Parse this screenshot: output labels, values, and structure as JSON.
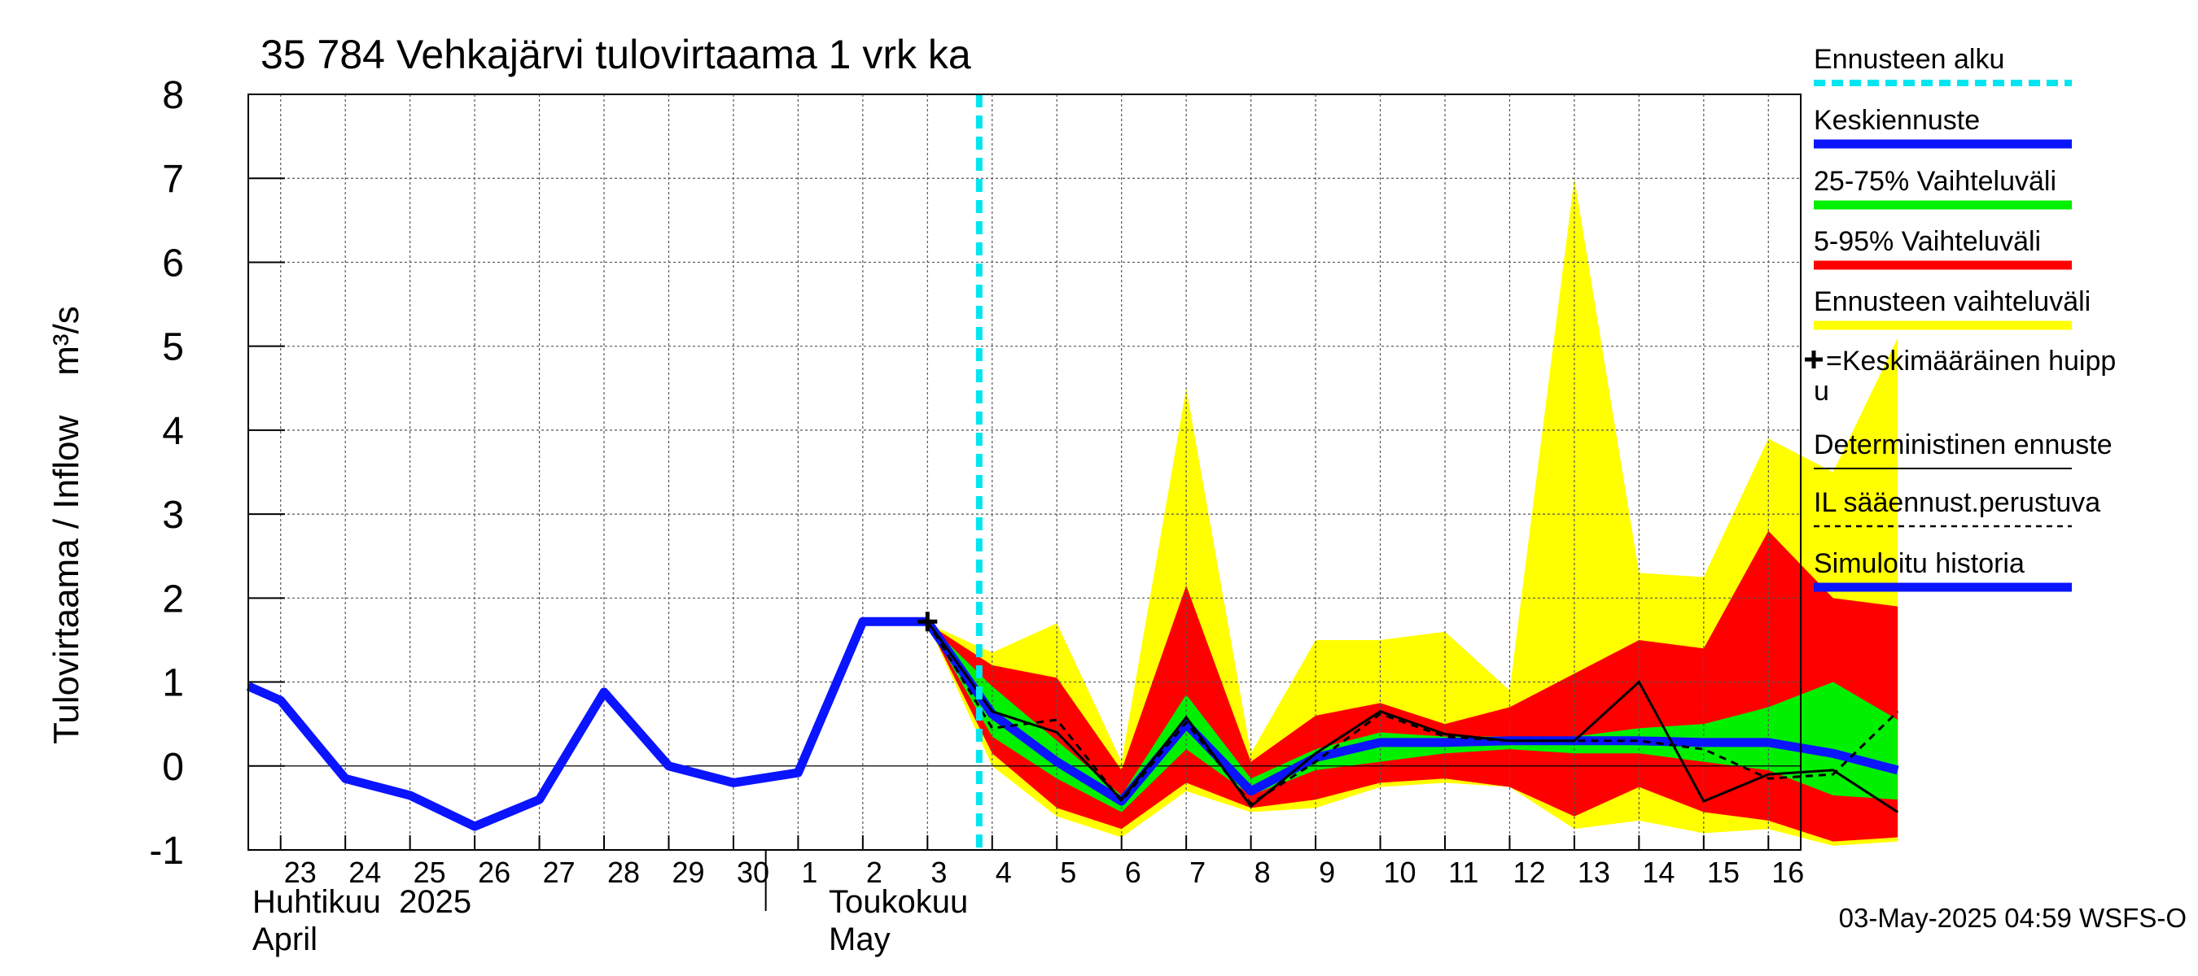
{
  "chart_data": {
    "type": "area",
    "title": "35 784 Vehkajärvi tulovirtaama 1 vrk ka",
    "ylabel": "Tulovirtaama / Inflow    m³/s",
    "ylim": [
      -1,
      8
    ],
    "yticks": [
      "-1",
      "0",
      "1",
      "2",
      "3",
      "4",
      "5",
      "6",
      "7",
      "8"
    ],
    "xlim_days": [
      -9.5,
      14.5
    ],
    "xtick_labels": [
      "23",
      "24",
      "25",
      "26",
      "27",
      "28",
      "29",
      "30",
      "1",
      "2",
      "3",
      "4",
      "5",
      "6",
      "7",
      "8",
      "9",
      "10",
      "11",
      "12",
      "13",
      "14",
      "15",
      "16"
    ],
    "month_labels": {
      "april_fi": "Huhtikuu  2025",
      "april_en": "April",
      "may_fi": "Toukokuu",
      "may_en": "May"
    },
    "forecast_start_day": 1.8,
    "colors": {
      "ennusteen_alku": "#00e5f0",
      "keskiennuste": "#0a14ff",
      "vaihtelu_25_75": "#00f000",
      "vaihtelu_5_95": "#ff0000",
      "ennusteen_vaihteluvali": "#ffff00",
      "deterministinen": "#000000",
      "simuloitu": "#0a14ff"
    },
    "series": {
      "ennusteen_vaihteluvali": {
        "x": [
          1,
          2,
          3,
          4,
          5,
          6,
          7,
          8,
          9,
          10,
          11,
          12,
          13,
          14,
          15,
          16
        ],
        "upper": [
          1.7,
          1.35,
          1.7,
          0.05,
          4.5,
          0.15,
          1.5,
          1.5,
          1.6,
          0.9,
          7.0,
          2.3,
          2.25,
          3.9,
          3.5,
          5.1
        ],
        "lower": [
          1.7,
          0.0,
          -0.6,
          -0.85,
          -0.3,
          -0.55,
          -0.5,
          -0.25,
          -0.2,
          -0.25,
          -0.75,
          -0.65,
          -0.8,
          -0.75,
          -0.95,
          -0.9
        ]
      },
      "vaihtelu_5_95": {
        "x": [
          1,
          2,
          3,
          4,
          5,
          6,
          7,
          8,
          9,
          10,
          11,
          12,
          13,
          14,
          15,
          16
        ],
        "upper": [
          1.7,
          1.2,
          1.05,
          -0.05,
          2.15,
          0.05,
          0.6,
          0.75,
          0.5,
          0.7,
          1.1,
          1.5,
          1.4,
          2.8,
          2.0,
          1.9
        ],
        "lower": [
          1.7,
          0.15,
          -0.5,
          -0.75,
          -0.2,
          -0.5,
          -0.4,
          -0.2,
          -0.15,
          -0.25,
          -0.6,
          -0.25,
          -0.55,
          -0.65,
          -0.9,
          -0.85
        ]
      },
      "vaihtelu_25_75": {
        "x": [
          1,
          2,
          3,
          4,
          5,
          6,
          7,
          8,
          9,
          10,
          11,
          12,
          13,
          14,
          15,
          16
        ],
        "upper": [
          1.7,
          0.95,
          0.3,
          -0.35,
          0.85,
          -0.15,
          0.2,
          0.4,
          0.35,
          0.35,
          0.35,
          0.45,
          0.5,
          0.7,
          1.0,
          0.55
        ],
        "lower": [
          1.7,
          0.35,
          -0.15,
          -0.55,
          0.2,
          -0.35,
          -0.05,
          0.05,
          0.15,
          0.2,
          0.15,
          0.15,
          0.05,
          -0.05,
          -0.35,
          -0.4
        ]
      },
      "keskiennuste": {
        "x": [
          1,
          2,
          3,
          4,
          5,
          6,
          7,
          8,
          9,
          10,
          11,
          12,
          13,
          14,
          15,
          16
        ],
        "values": [
          1.72,
          0.62,
          0.05,
          -0.42,
          0.5,
          -0.3,
          0.1,
          0.28,
          0.28,
          0.3,
          0.3,
          0.3,
          0.28,
          0.28,
          0.15,
          -0.05
        ]
      },
      "deterministinen": {
        "x": [
          1,
          2,
          3,
          4,
          5,
          6,
          7,
          8,
          9,
          10,
          11,
          12,
          13,
          14,
          15,
          16
        ],
        "values": [
          1.72,
          0.65,
          0.4,
          -0.4,
          0.58,
          -0.48,
          0.15,
          0.65,
          0.38,
          0.3,
          0.3,
          1.0,
          -0.42,
          -0.1,
          -0.05,
          -0.55
        ]
      },
      "il_saaennuste": {
        "x": [
          1,
          2,
          3,
          4,
          5,
          6,
          7,
          8,
          9,
          10,
          11,
          12,
          13,
          14,
          15,
          16
        ],
        "values": [
          1.72,
          0.45,
          0.55,
          -0.42,
          0.52,
          -0.45,
          0.05,
          0.62,
          0.35,
          0.3,
          0.3,
          0.3,
          0.2,
          -0.15,
          -0.1,
          0.65
        ]
      },
      "simuloitu_historia": {
        "x": [
          -9.5,
          -9,
          -8,
          -7,
          -6,
          -5,
          -4,
          -3,
          -2,
          -1,
          0,
          1
        ],
        "values": [
          0.95,
          0.78,
          -0.15,
          -0.35,
          -0.72,
          -0.4,
          0.88,
          0.0,
          -0.2,
          -0.08,
          1.72,
          1.72
        ]
      },
      "keskimaarainen_huippu": {
        "x": 1,
        "y": 1.72
      }
    },
    "legend": [
      {
        "key": "ennusteen_alku",
        "label": "Ennusteen alku",
        "style": "dashed-cyan"
      },
      {
        "key": "keskiennuste",
        "label": "Keskiennuste",
        "style": "thick-blue"
      },
      {
        "key": "vaihtelu_25_75",
        "label": "25-75% Vaihteluväli",
        "style": "thick-green"
      },
      {
        "key": "vaihtelu_5_95",
        "label": "5-95% Vaihteluväli",
        "style": "thick-red"
      },
      {
        "key": "ennusteen_vaihteluvali",
        "label": "Ennusteen vaihteluväli",
        "style": "thick-yellow"
      },
      {
        "key": "keskimaarainen_huippu",
        "label": "=Keskimääräinen huipp",
        "label2": "u",
        "style": "plus"
      },
      {
        "key": "deterministinen",
        "label": "Deterministinen ennuste",
        "style": "thin-black"
      },
      {
        "key": "il_saaennuste",
        "label": "IL sääennust.perustuva",
        "style": "dashed-black"
      },
      {
        "key": "simuloitu_historia",
        "label": "Simuloitu historia",
        "style": "thick-blue"
      }
    ],
    "footer": "03-May-2025 04:59 WSFS-O"
  }
}
